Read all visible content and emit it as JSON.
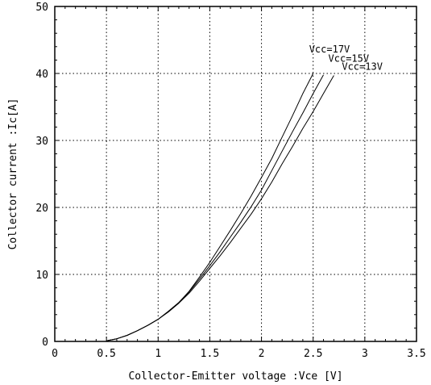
{
  "chart_data": {
    "type": "line",
    "title": "",
    "xlabel": "Collector-Emitter voltage :Vce [V]",
    "ylabel": "Collector current :Ic[A]",
    "xlim": [
      0,
      3.5
    ],
    "ylim": [
      0,
      50
    ],
    "x_ticks": [
      0,
      0.5,
      1,
      1.5,
      2,
      2.5,
      3,
      3.5
    ],
    "x_tick_labels": [
      "0",
      "0.5",
      "1",
      "1.5",
      "2",
      "2.5",
      "3",
      "3.5"
    ],
    "y_ticks": [
      0,
      10,
      20,
      30,
      40,
      50
    ],
    "y_tick_labels": [
      "0",
      "10",
      "20",
      "30",
      "40",
      "50"
    ],
    "grid": true,
    "colors": {
      "line": "#000000",
      "grid": "#000000",
      "background": "#ffffff"
    },
    "series": [
      {
        "name": "Vcc=17V",
        "x": [
          0.5,
          0.6,
          0.7,
          0.8,
          0.9,
          1.0,
          1.1,
          1.2,
          1.3,
          1.4,
          1.5,
          1.6,
          1.7,
          1.8,
          1.9,
          2.0,
          2.1,
          2.2,
          2.3,
          2.4,
          2.5
        ],
        "y": [
          0.1,
          0.4,
          0.9,
          1.6,
          2.4,
          3.3,
          4.5,
          5.8,
          7.5,
          9.6,
          11.8,
          14.2,
          16.6,
          19.1,
          21.7,
          24.5,
          27.3,
          30.5,
          33.7,
          37.0,
          40.0
        ]
      },
      {
        "name": "Vcc=15V",
        "x": [
          0.5,
          0.6,
          0.7,
          0.8,
          0.9,
          1.0,
          1.1,
          1.2,
          1.3,
          1.4,
          1.5,
          1.6,
          1.7,
          1.8,
          1.9,
          2.0,
          2.1,
          2.2,
          2.3,
          2.4,
          2.5,
          2.6
        ],
        "y": [
          0.1,
          0.4,
          0.9,
          1.6,
          2.4,
          3.3,
          4.5,
          5.8,
          7.4,
          9.3,
          11.3,
          13.4,
          15.6,
          17.8,
          20.1,
          22.6,
          25.5,
          28.4,
          31.3,
          34.1,
          37.0,
          39.8
        ]
      },
      {
        "name": "Vcc=13V",
        "x": [
          0.5,
          0.6,
          0.7,
          0.8,
          0.9,
          1.0,
          1.1,
          1.2,
          1.3,
          1.4,
          1.5,
          1.6,
          1.7,
          1.8,
          1.9,
          2.0,
          2.1,
          2.2,
          2.3,
          2.4,
          2.5,
          2.6,
          2.7
        ],
        "y": [
          0.1,
          0.4,
          0.9,
          1.6,
          2.4,
          3.3,
          4.4,
          5.7,
          7.2,
          9.0,
          10.9,
          12.8,
          14.8,
          16.9,
          19.0,
          21.3,
          23.8,
          26.5,
          29.1,
          31.8,
          34.3,
          37.0,
          39.7
        ]
      }
    ]
  }
}
